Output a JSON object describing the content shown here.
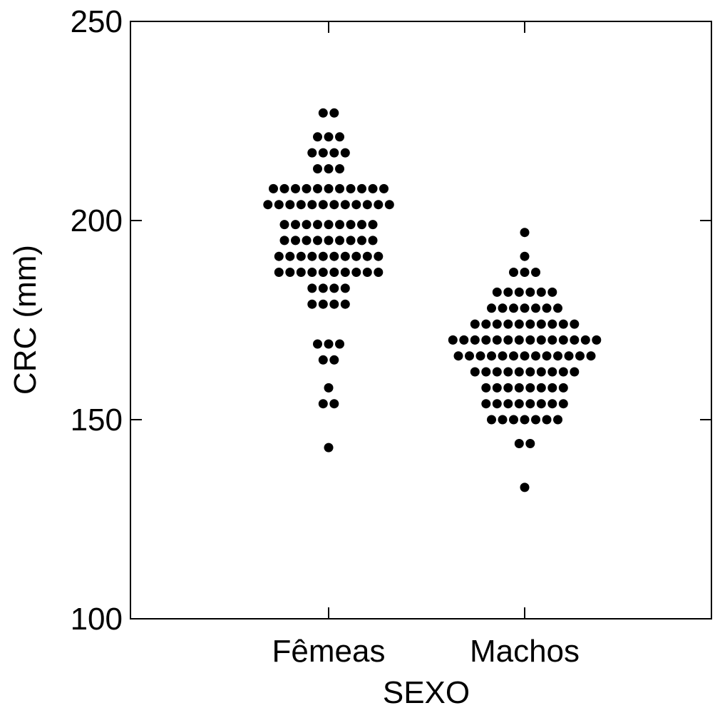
{
  "chart_data": {
    "type": "scatter",
    "subtype": "dot plot (beeswarm)",
    "xlabel": "SEXO",
    "ylabel": "CRC (mm)",
    "ylim": [
      100,
      250
    ],
    "yticks": [
      100,
      150,
      200,
      250
    ],
    "grid": false,
    "categories": [
      "Fêmeas",
      "Machos"
    ],
    "series": [
      {
        "category": "Fêmeas",
        "values": [
          227,
          227,
          221,
          221,
          221,
          217,
          217,
          217,
          217,
          213,
          213,
          213,
          208,
          208,
          208,
          208,
          208,
          208,
          208,
          208,
          208,
          208,
          208,
          204,
          204,
          204,
          204,
          204,
          204,
          204,
          204,
          204,
          204,
          204,
          204,
          199,
          199,
          199,
          199,
          199,
          199,
          199,
          199,
          199,
          195,
          195,
          195,
          195,
          195,
          195,
          195,
          195,
          195,
          191,
          191,
          191,
          191,
          191,
          191,
          191,
          191,
          191,
          191,
          187,
          187,
          187,
          187,
          187,
          187,
          187,
          187,
          187,
          187,
          183,
          183,
          183,
          183,
          179,
          179,
          179,
          179,
          169,
          169,
          169,
          165,
          165,
          158,
          154,
          154,
          143
        ]
      },
      {
        "category": "Machos",
        "values": [
          197,
          191,
          187,
          187,
          187,
          182,
          182,
          182,
          182,
          182,
          182,
          178,
          178,
          178,
          178,
          178,
          178,
          178,
          174,
          174,
          174,
          174,
          174,
          174,
          174,
          174,
          174,
          174,
          170,
          170,
          170,
          170,
          170,
          170,
          170,
          170,
          170,
          170,
          170,
          170,
          170,
          170,
          166,
          166,
          166,
          166,
          166,
          166,
          166,
          166,
          166,
          166,
          166,
          166,
          166,
          162,
          162,
          162,
          162,
          162,
          162,
          162,
          162,
          162,
          162,
          158,
          158,
          158,
          158,
          158,
          158,
          158,
          158,
          154,
          154,
          154,
          154,
          154,
          154,
          154,
          154,
          150,
          150,
          150,
          150,
          150,
          150,
          150,
          144,
          144,
          133
        ]
      }
    ]
  }
}
